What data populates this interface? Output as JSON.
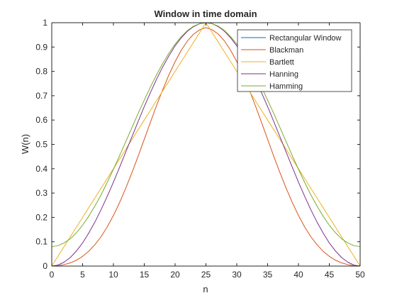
{
  "chart_data": {
    "type": "line",
    "title": "Window in time domain",
    "xlabel": "n",
    "ylabel": "W(n)",
    "xlim": [
      0,
      50
    ],
    "ylim": [
      0,
      1
    ],
    "xticks": [
      0,
      5,
      10,
      15,
      20,
      25,
      30,
      35,
      40,
      45,
      50
    ],
    "xtick_labels": [
      "0",
      "5",
      "10",
      "15",
      "20",
      "25",
      "30",
      "35",
      "40",
      "45",
      "50"
    ],
    "yticks": [
      0,
      0.1,
      0.2,
      0.3,
      0.4,
      0.5,
      0.6,
      0.7,
      0.8,
      0.9,
      1
    ],
    "ytick_labels": [
      "0",
      "0.1",
      "0.2",
      "0.3",
      "0.4",
      "0.5",
      "0.6",
      "0.7",
      "0.8",
      "0.9",
      "1"
    ],
    "grid": false,
    "legend_position": "top-right",
    "x": [
      0,
      1,
      2,
      3,
      4,
      5,
      6,
      7,
      8,
      9,
      10,
      11,
      12,
      13,
      14,
      15,
      16,
      17,
      18,
      19,
      20,
      21,
      22,
      23,
      24,
      25,
      26,
      27,
      28,
      29,
      30,
      31,
      32,
      33,
      34,
      35,
      36,
      37,
      38,
      39,
      40,
      41,
      42,
      43,
      44,
      45,
      46,
      47,
      48,
      49,
      50
    ],
    "series": [
      {
        "name": "Rectangular Window",
        "color": "#0072bd",
        "values": [
          1,
          1,
          1,
          1,
          1,
          1,
          1,
          1,
          1,
          1,
          1,
          1,
          1,
          1,
          1,
          1,
          1,
          1,
          1,
          1,
          1,
          1,
          1,
          1,
          1,
          1,
          1,
          1,
          1,
          1,
          1,
          1,
          1,
          1,
          1,
          1,
          1,
          1,
          1,
          1,
          1,
          1,
          1,
          1,
          1,
          1,
          1,
          1,
          1,
          1,
          1
        ]
      },
      {
        "name": "Blackman",
        "color": "#d95319",
        "values": [
          0,
          0.001,
          0.006,
          0.013,
          0.024,
          0.04,
          0.061,
          0.088,
          0.121,
          0.161,
          0.208,
          0.261,
          0.32,
          0.384,
          0.451,
          0.521,
          0.591,
          0.66,
          0.725,
          0.786,
          0.84,
          0.887,
          0.925,
          0.953,
          0.971,
          0.98,
          0.971,
          0.953,
          0.925,
          0.887,
          0.84,
          0.786,
          0.725,
          0.66,
          0.591,
          0.521,
          0.451,
          0.384,
          0.32,
          0.261,
          0.208,
          0.161,
          0.121,
          0.088,
          0.061,
          0.04,
          0.024,
          0.013,
          0.006,
          0.001,
          0
        ]
      },
      {
        "name": "Bartlett",
        "color": "#edb120",
        "values": [
          0,
          0.04,
          0.08,
          0.12,
          0.16,
          0.2,
          0.24,
          0.28,
          0.32,
          0.36,
          0.4,
          0.44,
          0.48,
          0.52,
          0.56,
          0.6,
          0.64,
          0.68,
          0.72,
          0.76,
          0.8,
          0.84,
          0.88,
          0.92,
          0.96,
          1,
          0.96,
          0.92,
          0.88,
          0.84,
          0.8,
          0.76,
          0.72,
          0.68,
          0.64,
          0.6,
          0.56,
          0.52,
          0.48,
          0.44,
          0.4,
          0.36,
          0.32,
          0.28,
          0.24,
          0.2,
          0.16,
          0.12,
          0.08,
          0.04,
          0
        ]
      },
      {
        "name": "Hanning",
        "color": "#7e2f8e",
        "values": [
          0,
          0.004,
          0.016,
          0.035,
          0.062,
          0.095,
          0.136,
          0.181,
          0.232,
          0.287,
          0.345,
          0.406,
          0.469,
          0.531,
          0.594,
          0.655,
          0.713,
          0.768,
          0.819,
          0.864,
          0.905,
          0.938,
          0.965,
          0.984,
          0.996,
          1,
          0.996,
          0.984,
          0.965,
          0.938,
          0.905,
          0.864,
          0.819,
          0.768,
          0.713,
          0.655,
          0.594,
          0.531,
          0.469,
          0.406,
          0.345,
          0.287,
          0.232,
          0.181,
          0.136,
          0.095,
          0.062,
          0.035,
          0.016,
          0.004,
          0
        ]
      },
      {
        "name": "Hamming",
        "color": "#77ac30",
        "values": [
          0.08,
          0.084,
          0.095,
          0.112,
          0.137,
          0.168,
          0.205,
          0.247,
          0.293,
          0.344,
          0.398,
          0.454,
          0.511,
          0.569,
          0.627,
          0.682,
          0.736,
          0.786,
          0.833,
          0.875,
          0.912,
          0.943,
          0.968,
          0.986,
          0.996,
          1,
          0.996,
          0.986,
          0.968,
          0.943,
          0.912,
          0.875,
          0.833,
          0.786,
          0.736,
          0.682,
          0.627,
          0.569,
          0.511,
          0.454,
          0.398,
          0.344,
          0.293,
          0.247,
          0.205,
          0.168,
          0.137,
          0.112,
          0.095,
          0.084,
          0.08
        ]
      }
    ]
  }
}
